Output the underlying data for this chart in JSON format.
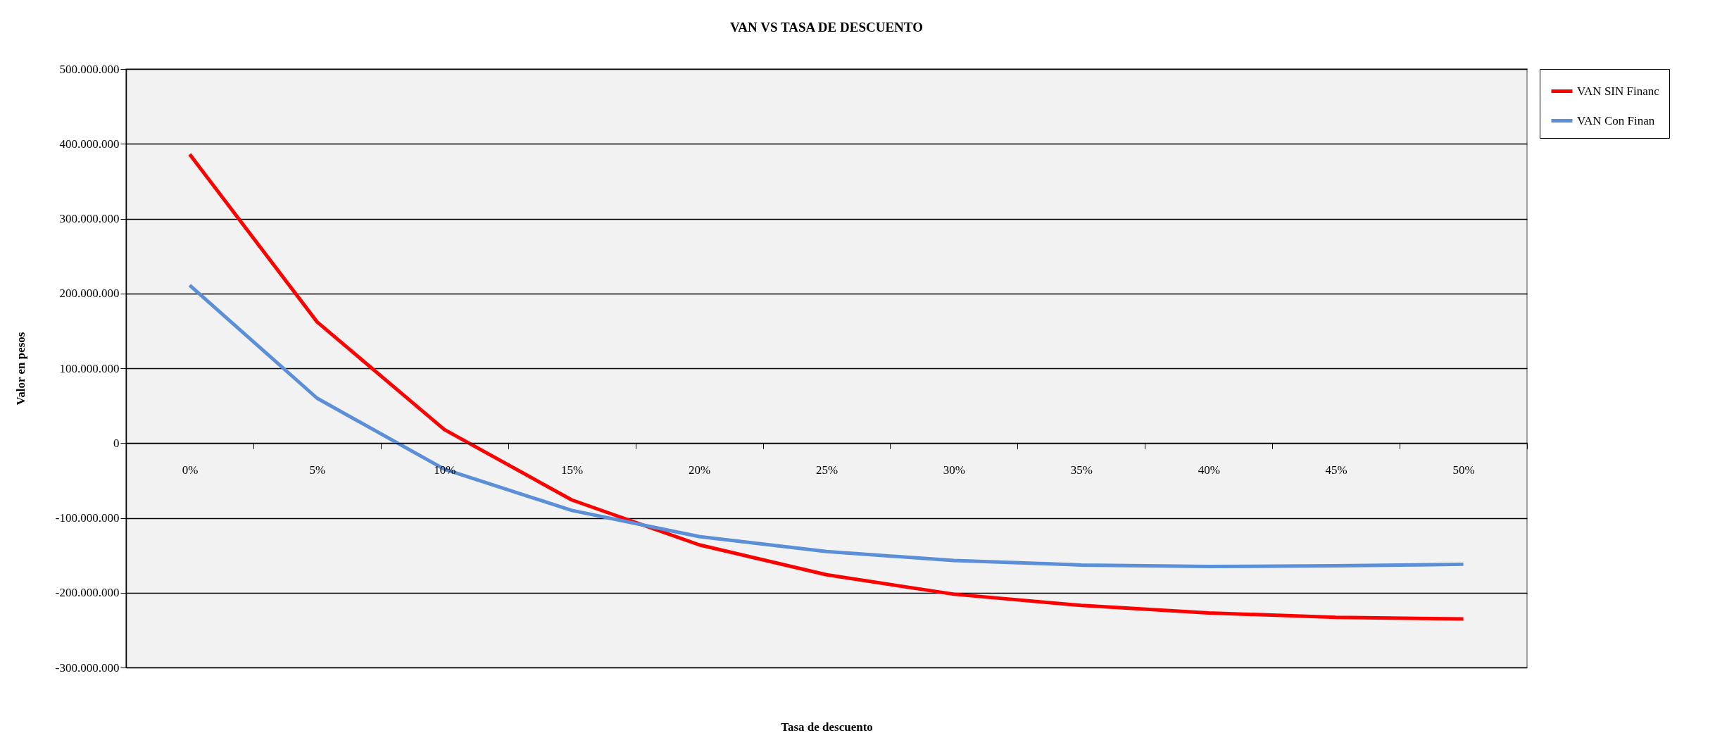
{
  "chart_data": {
    "type": "line",
    "title": "VAN VS TASA DE DESCUENTO",
    "xlabel": "Tasa de descuento",
    "ylabel": "Valor en pesos",
    "categories": [
      "0%",
      "5%",
      "10%",
      "15%",
      "20%",
      "25%",
      "30%",
      "35%",
      "40%",
      "45%",
      "50%"
    ],
    "series": [
      {
        "name": "VAN SIN Financ",
        "color": "#ff0000",
        "values": [
          386000000,
          162000000,
          18000000,
          -76000000,
          -136000000,
          -176000000,
          -202000000,
          -217000000,
          -227000000,
          -233000000,
          -235000000
        ]
      },
      {
        "name": "VAN Con Finan",
        "color": "#5b8fd8",
        "values": [
          211000000,
          60000000,
          -35000000,
          -90000000,
          -125000000,
          -145000000,
          -157000000,
          -163000000,
          -165000000,
          -164000000,
          -162000000
        ]
      }
    ],
    "ylim": [
      -300000000,
      500000000
    ],
    "yticks": [
      {
        "value": -300000000,
        "label": "-300.000.000"
      },
      {
        "value": -200000000,
        "label": "-200.000.000"
      },
      {
        "value": -100000000,
        "label": "-100.000.000"
      },
      {
        "value": 0,
        "label": "0"
      },
      {
        "value": 100000000,
        "label": "100.000.000"
      },
      {
        "value": 200000000,
        "label": "200.000.000"
      },
      {
        "value": 300000000,
        "label": "300.000.000"
      },
      {
        "value": 400000000,
        "label": "400.000.000"
      },
      {
        "value": 500000000,
        "label": "500.000.000"
      }
    ],
    "grid": "y",
    "legend": "right",
    "marker": "none",
    "line_style": "solid"
  }
}
